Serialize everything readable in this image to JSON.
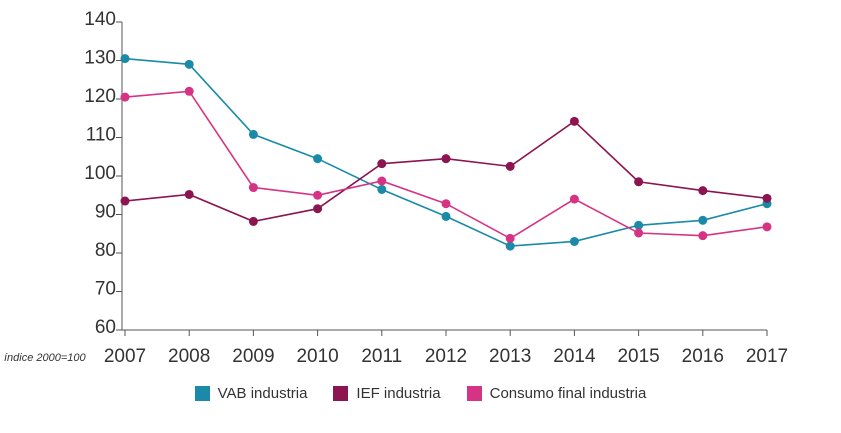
{
  "chart_data": {
    "type": "line",
    "x": [
      "2007",
      "2008",
      "2009",
      "2010",
      "2011",
      "2012",
      "2013",
      "2014",
      "2015",
      "2016",
      "2017"
    ],
    "series": [
      {
        "name": "VAB industria",
        "color": "#1a8aa8",
        "values": [
          130.5,
          129,
          110.8,
          104.5,
          96.5,
          89.5,
          81.8,
          83,
          87.2,
          88.5,
          92.8
        ]
      },
      {
        "name": "IEF industria",
        "color": "#8c1450",
        "values": [
          93.5,
          95.2,
          88.2,
          91.5,
          103.2,
          104.5,
          102.5,
          114.2,
          98.5,
          96.2,
          94.2
        ]
      },
      {
        "name": "Consumo final industria",
        "color": "#d63384",
        "values": [
          120.5,
          122,
          97,
          95,
          98.7,
          92.8,
          83.8,
          94,
          85.2,
          84.5,
          86.8
        ]
      }
    ],
    "yticks": [
      60,
      70,
      80,
      90,
      100,
      110,
      120,
      130,
      140
    ],
    "ylim": [
      60,
      140
    ],
    "ylabel": "",
    "xlabel": "",
    "note": "índice 2000=100",
    "legend_position": "bottom-center",
    "axis_color": "#555555"
  }
}
